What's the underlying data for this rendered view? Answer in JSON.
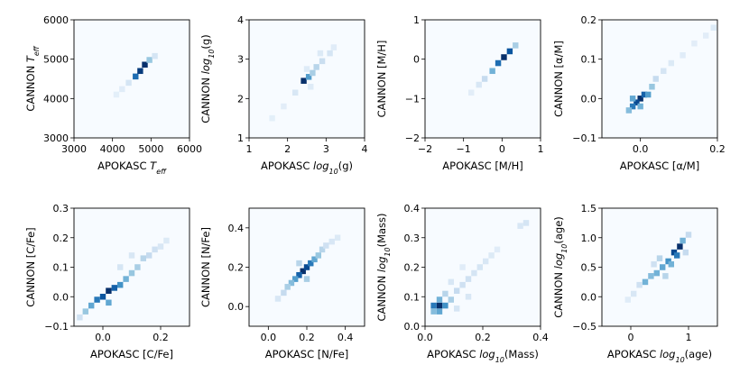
{
  "chart_data": [
    {
      "type": "heatmap",
      "xlabel": "APOKASC",
      "xsymbol": "T_eff",
      "ylabel": "CANNON",
      "ysymbol": "T_eff",
      "xlim": [
        3000,
        6000
      ],
      "ylim": [
        3000,
        6000
      ],
      "xticks": [
        "3000",
        "4000",
        "5000",
        "6000"
      ],
      "yticks": [
        "3000",
        "4000",
        "5000",
        "6000"
      ],
      "density": [
        {
          "x": 4600,
          "y": 4560,
          "v": 0.75
        },
        {
          "x": 4720,
          "y": 4700,
          "v": 0.95
        },
        {
          "x": 4840,
          "y": 4860,
          "v": 1.0
        },
        {
          "x": 4960,
          "y": 4980,
          "v": 0.35
        },
        {
          "x": 4420,
          "y": 4400,
          "v": 0.12
        },
        {
          "x": 4250,
          "y": 4240,
          "v": 0.06
        },
        {
          "x": 5100,
          "y": 5080,
          "v": 0.12
        },
        {
          "x": 4100,
          "y": 4100,
          "v": 0.04
        }
      ]
    },
    {
      "type": "heatmap",
      "xlabel": "APOKASC",
      "xsymbol": "log10(g)",
      "ylabel": "CANNON",
      "ysymbol": "log10(g)",
      "xlim": [
        1,
        4
      ],
      "ylim": [
        1,
        4
      ],
      "xticks": [
        "1",
        "2",
        "3",
        "4"
      ],
      "yticks": [
        "1",
        "2",
        "3",
        "4"
      ],
      "density": [
        {
          "x": 2.42,
          "y": 2.45,
          "v": 1.0
        },
        {
          "x": 2.55,
          "y": 2.55,
          "v": 0.55
        },
        {
          "x": 2.65,
          "y": 2.65,
          "v": 0.3
        },
        {
          "x": 2.75,
          "y": 2.8,
          "v": 0.25
        },
        {
          "x": 2.9,
          "y": 2.95,
          "v": 0.18
        },
        {
          "x": 3.1,
          "y": 3.15,
          "v": 0.12
        },
        {
          "x": 2.2,
          "y": 2.15,
          "v": 0.1
        },
        {
          "x": 2.85,
          "y": 3.15,
          "v": 0.08
        },
        {
          "x": 3.2,
          "y": 3.3,
          "v": 0.06
        },
        {
          "x": 1.9,
          "y": 1.8,
          "v": 0.05
        },
        {
          "x": 1.6,
          "y": 1.5,
          "v": 0.04
        },
        {
          "x": 2.6,
          "y": 2.3,
          "v": 0.07
        },
        {
          "x": 2.5,
          "y": 2.75,
          "v": 0.07
        }
      ]
    },
    {
      "type": "heatmap",
      "xlabel": "APOKASC",
      "xsymbol": "[M/H]",
      "ylabel": "CANNON",
      "ysymbol": "[M/H]",
      "xlim": [
        -2,
        1
      ],
      "ylim": [
        -2,
        1
      ],
      "xticks": [
        "−2",
        "−1",
        "0",
        "1"
      ],
      "yticks": [
        "−2",
        "−1",
        "0",
        "1"
      ],
      "density": [
        {
          "x": 0.05,
          "y": 0.05,
          "v": 1.0
        },
        {
          "x": 0.2,
          "y": 0.2,
          "v": 0.85
        },
        {
          "x": -0.1,
          "y": -0.1,
          "v": 0.75
        },
        {
          "x": -0.25,
          "y": -0.3,
          "v": 0.45
        },
        {
          "x": 0.35,
          "y": 0.35,
          "v": 0.3
        },
        {
          "x": -0.45,
          "y": -0.5,
          "v": 0.2
        },
        {
          "x": -0.6,
          "y": -0.65,
          "v": 0.1
        },
        {
          "x": -0.8,
          "y": -0.85,
          "v": 0.05
        }
      ]
    },
    {
      "type": "heatmap",
      "xlabel": "APOKASC",
      "xsymbol": "[α/M]",
      "ylabel": "CANNON",
      "ysymbol": "[α/M]",
      "xlim": [
        -0.1,
        0.2
      ],
      "ylim": [
        -0.1,
        0.2
      ],
      "xticks": [
        "0.0",
        "0.2"
      ],
      "yticks": [
        "−0.1",
        "0.0",
        "0.1",
        "0.2"
      ],
      "density": [
        {
          "x": 0.0,
          "y": 0.0,
          "v": 1.0
        },
        {
          "x": -0.01,
          "y": -0.01,
          "v": 0.9
        },
        {
          "x": 0.01,
          "y": 0.01,
          "v": 0.8
        },
        {
          "x": -0.02,
          "y": -0.02,
          "v": 0.7
        },
        {
          "x": 0.02,
          "y": 0.01,
          "v": 0.55
        },
        {
          "x": -0.02,
          "y": 0.0,
          "v": 0.5
        },
        {
          "x": 0.0,
          "y": -0.02,
          "v": 0.45
        },
        {
          "x": 0.03,
          "y": 0.03,
          "v": 0.35
        },
        {
          "x": -0.03,
          "y": -0.03,
          "v": 0.4
        },
        {
          "x": 0.04,
          "y": 0.05,
          "v": 0.2
        },
        {
          "x": 0.06,
          "y": 0.07,
          "v": 0.12
        },
        {
          "x": 0.08,
          "y": 0.09,
          "v": 0.08
        },
        {
          "x": 0.11,
          "y": 0.11,
          "v": 0.06
        },
        {
          "x": 0.14,
          "y": 0.14,
          "v": 0.05
        },
        {
          "x": 0.17,
          "y": 0.16,
          "v": 0.05
        },
        {
          "x": 0.19,
          "y": 0.18,
          "v": 0.08
        }
      ]
    },
    {
      "type": "heatmap",
      "xlabel": "APOKASC",
      "xsymbol": "[C/Fe]",
      "ylabel": "CANNON",
      "ysymbol": "[C/Fe]",
      "xlim": [
        -0.1,
        0.3
      ],
      "ylim": [
        -0.1,
        0.3
      ],
      "xticks": [
        "0.0",
        "0.2"
      ],
      "yticks": [
        "−0.1",
        "0.0",
        "0.1",
        "0.2",
        "0.3"
      ],
      "density": [
        {
          "x": 0.02,
          "y": 0.02,
          "v": 1.0
        },
        {
          "x": 0.0,
          "y": 0.0,
          "v": 0.85
        },
        {
          "x": 0.04,
          "y": 0.03,
          "v": 0.8
        },
        {
          "x": -0.02,
          "y": -0.01,
          "v": 0.7
        },
        {
          "x": 0.06,
          "y": 0.04,
          "v": 0.6
        },
        {
          "x": -0.04,
          "y": -0.03,
          "v": 0.5
        },
        {
          "x": 0.02,
          "y": -0.02,
          "v": 0.5
        },
        {
          "x": 0.08,
          "y": 0.06,
          "v": 0.45
        },
        {
          "x": -0.06,
          "y": -0.05,
          "v": 0.35
        },
        {
          "x": 0.1,
          "y": 0.08,
          "v": 0.35
        },
        {
          "x": 0.12,
          "y": 0.1,
          "v": 0.3
        },
        {
          "x": 0.14,
          "y": 0.13,
          "v": 0.25
        },
        {
          "x": 0.16,
          "y": 0.14,
          "v": 0.2
        },
        {
          "x": 0.18,
          "y": 0.16,
          "v": 0.15
        },
        {
          "x": 0.2,
          "y": 0.17,
          "v": 0.1
        },
        {
          "x": 0.22,
          "y": 0.19,
          "v": 0.08
        },
        {
          "x": 0.1,
          "y": 0.14,
          "v": 0.1
        },
        {
          "x": 0.06,
          "y": 0.1,
          "v": 0.12
        },
        {
          "x": -0.08,
          "y": -0.07,
          "v": 0.15
        }
      ]
    },
    {
      "type": "heatmap",
      "xlabel": "APOKASC",
      "xsymbol": "[N/Fe]",
      "ylabel": "CANNON",
      "ysymbol": "[N/Fe]",
      "xlim": [
        -0.1,
        0.5
      ],
      "ylim": [
        -0.1,
        0.5
      ],
      "xticks": [
        "0.0",
        "0.2",
        "0.4"
      ],
      "yticks": [
        "0.0",
        "0.2",
        "0.4"
      ],
      "density": [
        {
          "x": 0.18,
          "y": 0.18,
          "v": 1.0
        },
        {
          "x": 0.2,
          "y": 0.2,
          "v": 0.9
        },
        {
          "x": 0.16,
          "y": 0.16,
          "v": 0.8
        },
        {
          "x": 0.22,
          "y": 0.22,
          "v": 0.7
        },
        {
          "x": 0.14,
          "y": 0.14,
          "v": 0.55
        },
        {
          "x": 0.24,
          "y": 0.24,
          "v": 0.5
        },
        {
          "x": 0.12,
          "y": 0.12,
          "v": 0.4
        },
        {
          "x": 0.26,
          "y": 0.26,
          "v": 0.35
        },
        {
          "x": 0.1,
          "y": 0.1,
          "v": 0.3
        },
        {
          "x": 0.28,
          "y": 0.29,
          "v": 0.25
        },
        {
          "x": 0.08,
          "y": 0.07,
          "v": 0.2
        },
        {
          "x": 0.3,
          "y": 0.31,
          "v": 0.15
        },
        {
          "x": 0.33,
          "y": 0.33,
          "v": 0.1
        },
        {
          "x": 0.36,
          "y": 0.35,
          "v": 0.08
        },
        {
          "x": 0.05,
          "y": 0.04,
          "v": 0.1
        },
        {
          "x": 0.2,
          "y": 0.14,
          "v": 0.3
        },
        {
          "x": 0.16,
          "y": 0.22,
          "v": 0.25
        }
      ]
    },
    {
      "type": "heatmap",
      "xlabel": "APOKASC",
      "xsymbol": "log10(Mass)",
      "ylabel": "CANNON",
      "ysymbol": "log10(Mass)",
      "xlim": [
        0.0,
        0.4
      ],
      "ylim": [
        0.0,
        0.4
      ],
      "xticks": [
        "0.0",
        "0.2",
        "0.4"
      ],
      "yticks": [
        "0.0",
        "0.1",
        "0.2",
        "0.3",
        "0.4"
      ],
      "density": [
        {
          "x": 0.05,
          "y": 0.07,
          "v": 1.0
        },
        {
          "x": 0.03,
          "y": 0.07,
          "v": 0.7
        },
        {
          "x": 0.07,
          "y": 0.07,
          "v": 0.6
        },
        {
          "x": 0.05,
          "y": 0.05,
          "v": 0.5
        },
        {
          "x": 0.05,
          "y": 0.09,
          "v": 0.45
        },
        {
          "x": 0.03,
          "y": 0.05,
          "v": 0.4
        },
        {
          "x": 0.09,
          "y": 0.09,
          "v": 0.3
        },
        {
          "x": 0.11,
          "y": 0.12,
          "v": 0.2
        },
        {
          "x": 0.07,
          "y": 0.11,
          "v": 0.25
        },
        {
          "x": 0.13,
          "y": 0.14,
          "v": 0.15
        },
        {
          "x": 0.15,
          "y": 0.16,
          "v": 0.15
        },
        {
          "x": 0.17,
          "y": 0.18,
          "v": 0.12
        },
        {
          "x": 0.19,
          "y": 0.2,
          "v": 0.12
        },
        {
          "x": 0.21,
          "y": 0.22,
          "v": 0.1
        },
        {
          "x": 0.23,
          "y": 0.24,
          "v": 0.08
        },
        {
          "x": 0.25,
          "y": 0.26,
          "v": 0.06
        },
        {
          "x": 0.33,
          "y": 0.34,
          "v": 0.1
        },
        {
          "x": 0.35,
          "y": 0.35,
          "v": 0.12
        },
        {
          "x": 0.11,
          "y": 0.06,
          "v": 0.12
        },
        {
          "x": 0.15,
          "y": 0.1,
          "v": 0.1
        },
        {
          "x": 0.09,
          "y": 0.15,
          "v": 0.1
        },
        {
          "x": 0.13,
          "y": 0.2,
          "v": 0.06
        }
      ]
    },
    {
      "type": "heatmap",
      "xlabel": "APOKASC",
      "xsymbol": "log10(age)",
      "ylabel": "CANNON",
      "ysymbol": "log10(age)",
      "xlim": [
        -0.5,
        1.5
      ],
      "ylim": [
        -0.5,
        1.5
      ],
      "xticks": [
        "0",
        "1"
      ],
      "yticks": [
        "−0.5",
        "0.0",
        "0.5",
        "1.0",
        "1.5"
      ],
      "density": [
        {
          "x": 0.85,
          "y": 0.85,
          "v": 1.0
        },
        {
          "x": 0.75,
          "y": 0.75,
          "v": 0.9
        },
        {
          "x": 0.8,
          "y": 0.7,
          "v": 0.7
        },
        {
          "x": 0.65,
          "y": 0.6,
          "v": 0.6
        },
        {
          "x": 0.9,
          "y": 0.95,
          "v": 0.45
        },
        {
          "x": 0.55,
          "y": 0.5,
          "v": 0.5
        },
        {
          "x": 0.7,
          "y": 0.55,
          "v": 0.45
        },
        {
          "x": 0.45,
          "y": 0.4,
          "v": 0.45
        },
        {
          "x": 0.35,
          "y": 0.35,
          "v": 0.4
        },
        {
          "x": 0.25,
          "y": 0.25,
          "v": 0.45
        },
        {
          "x": 0.6,
          "y": 0.35,
          "v": 0.25
        },
        {
          "x": 1.0,
          "y": 1.05,
          "v": 0.2
        },
        {
          "x": 0.15,
          "y": 0.2,
          "v": 0.15
        },
        {
          "x": 0.05,
          "y": 0.05,
          "v": 0.1
        },
        {
          "x": 0.5,
          "y": 0.65,
          "v": 0.25
        },
        {
          "x": 0.95,
          "y": 0.75,
          "v": 0.2
        },
        {
          "x": 0.4,
          "y": 0.55,
          "v": 0.15
        },
        {
          "x": -0.05,
          "y": -0.05,
          "v": 0.06
        }
      ]
    }
  ]
}
